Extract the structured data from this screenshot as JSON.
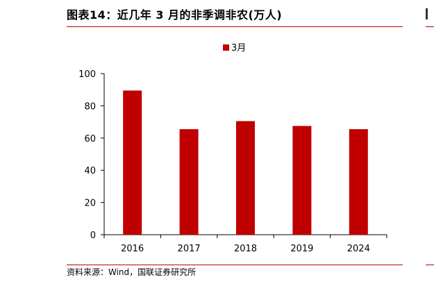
{
  "figure": {
    "title": "图表14：近几年 3 月的非季调非农(万人)",
    "source": "资料来源：Wind，国联证券研究所"
  },
  "colors": {
    "bar": "#c00000",
    "rule": "#c00000",
    "axis": "#000000"
  },
  "chart_data": {
    "type": "bar",
    "title": "",
    "xlabel": "",
    "ylabel": "",
    "categories": [
      "2016",
      "2017",
      "2018",
      "2019",
      "2024"
    ],
    "series": [
      {
        "name": "3月",
        "values": [
          89.5,
          65.5,
          70.5,
          67.5,
          65.5
        ]
      }
    ],
    "ylim": [
      0,
      100
    ],
    "yticks": [
      0,
      20,
      40,
      60,
      80,
      100
    ],
    "grid": false,
    "legend": "top-center"
  }
}
